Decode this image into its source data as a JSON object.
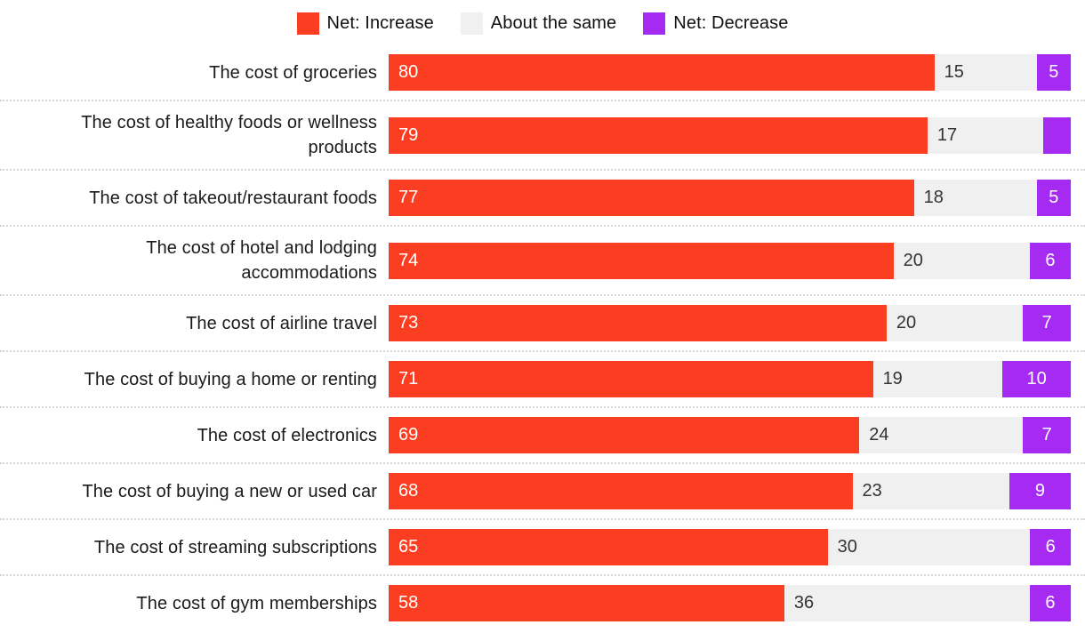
{
  "colors": {
    "increase": "#fb3e22",
    "same": "#f0f0f0",
    "decrease": "#a62bf2",
    "label_text": "#1a1a1a",
    "value_on_same": "#333333",
    "separator": "#d6d6d6"
  },
  "legend": {
    "items": [
      {
        "label": "Net: Increase",
        "color_key": "increase"
      },
      {
        "label": "About the same",
        "color_key": "same"
      },
      {
        "label": "Net: Decrease",
        "color_key": "decrease"
      }
    ]
  },
  "chart_data": {
    "type": "bar",
    "orientation": "horizontal",
    "stacked": true,
    "axis_range": [
      0,
      100
    ],
    "grid": false,
    "legend_position": "top",
    "value_labels": "inside",
    "min_value_for_label": 5,
    "categories": [
      "The cost of groceries",
      "The cost of healthy foods or wellness\nproducts",
      "The cost of takeout/restaurant foods",
      "The cost of hotel and lodging\naccommodations",
      "The cost of airline travel",
      "The cost of buying a home or renting",
      "The cost of electronics",
      "The cost of buying a new or used car",
      "The cost of streaming subscriptions",
      "The cost of gym memberships"
    ],
    "series": [
      {
        "name": "Net: Increase",
        "color_key": "increase",
        "values": [
          80,
          79,
          77,
          74,
          73,
          71,
          69,
          68,
          65,
          58
        ]
      },
      {
        "name": "About the same",
        "color_key": "same",
        "values": [
          15,
          17,
          18,
          20,
          20,
          19,
          24,
          23,
          30,
          36
        ]
      },
      {
        "name": "Net: Decrease",
        "color_key": "decrease",
        "values": [
          5,
          4,
          5,
          6,
          7,
          10,
          7,
          9,
          6,
          6
        ]
      }
    ]
  }
}
